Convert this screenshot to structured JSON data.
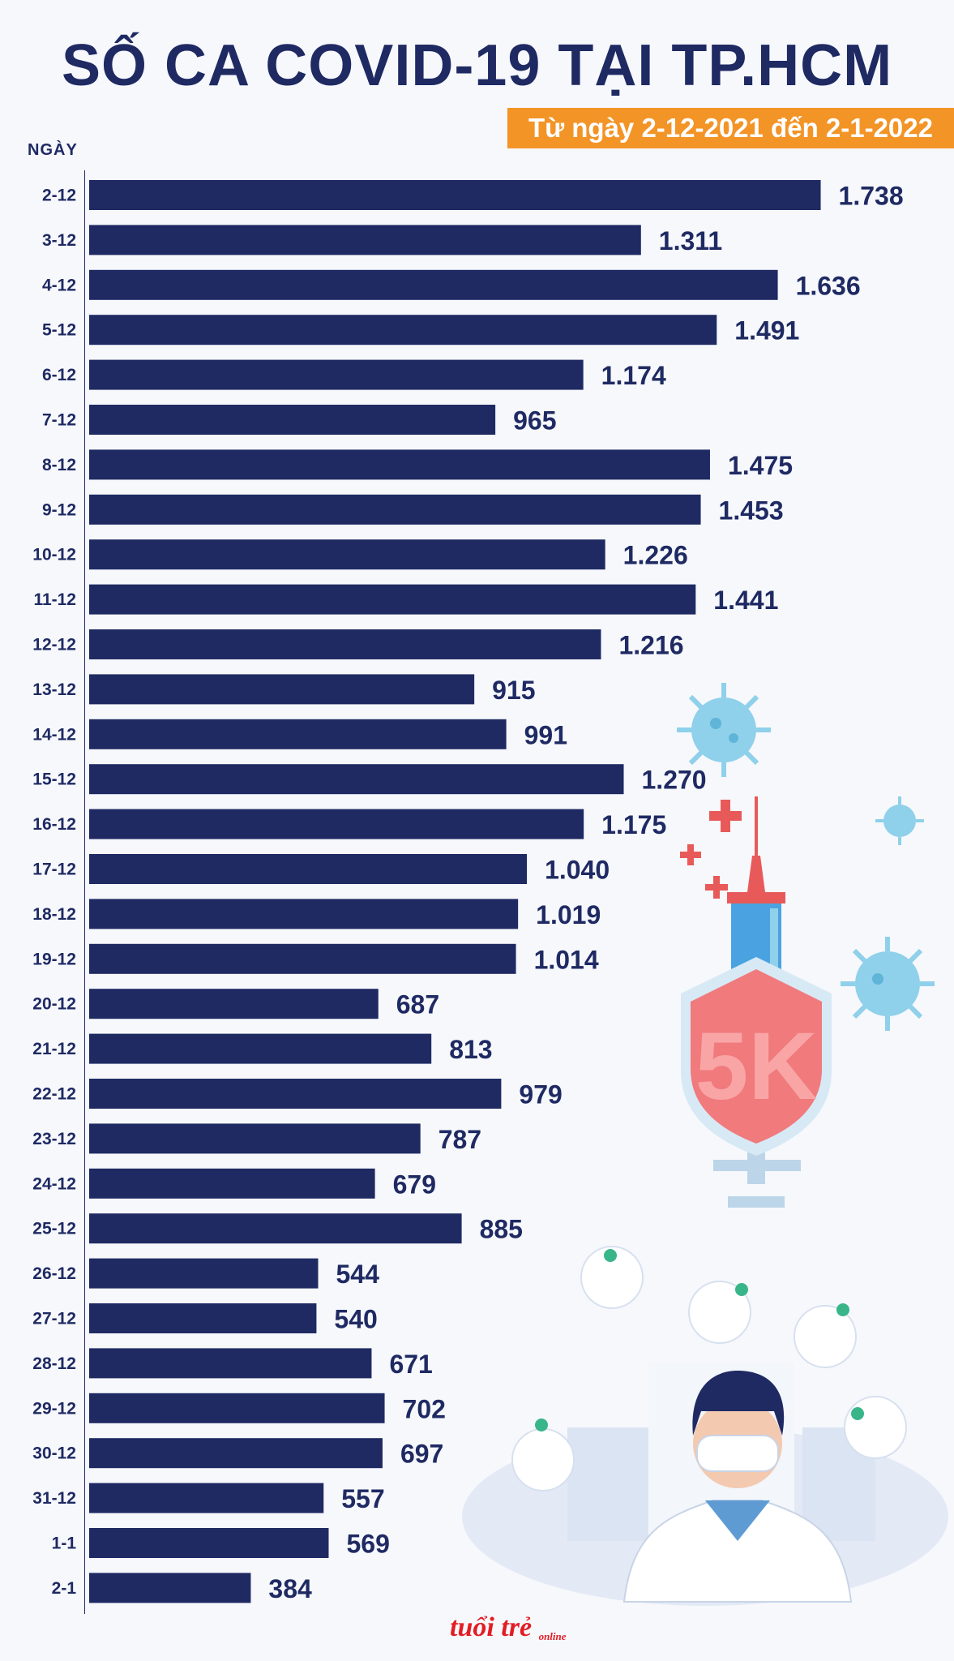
{
  "title": "SỐ CA COVID-19 TẠI TP.HCM",
  "subtitle": "Từ ngày 2-12-2021 đến 2-1-2022",
  "logo": {
    "main": "tuổi trẻ",
    "sub": "online"
  },
  "illustration": {
    "shield_text": "5K"
  },
  "colors": {
    "bar": "#1f2a63",
    "accent": "#f39427",
    "text": "#1f2a63"
  },
  "chart_data": {
    "type": "bar",
    "orientation": "horizontal",
    "title": "SỐ CA COVID-19 TẠI TP.HCM",
    "subtitle": "Từ ngày 2-12-2021 đến 2-1-2022",
    "ylabel": "NGÀY",
    "xlabel": "",
    "xlim": [
      0,
      2000
    ],
    "categories": [
      "2-12",
      "3-12",
      "4-12",
      "5-12",
      "6-12",
      "7-12",
      "8-12",
      "9-12",
      "10-12",
      "11-12",
      "12-12",
      "13-12",
      "14-12",
      "15-12",
      "16-12",
      "17-12",
      "18-12",
      "19-12",
      "20-12",
      "21-12",
      "22-12",
      "23-12",
      "24-12",
      "25-12",
      "26-12",
      "27-12",
      "28-12",
      "29-12",
      "30-12",
      "31-12",
      "1-1",
      "2-1"
    ],
    "values": [
      1738,
      1311,
      1636,
      1491,
      1174,
      965,
      1475,
      1453,
      1226,
      1441,
      1216,
      915,
      991,
      1270,
      1175,
      1040,
      1019,
      1014,
      687,
      813,
      979,
      787,
      679,
      885,
      544,
      540,
      671,
      702,
      697,
      557,
      569,
      384
    ],
    "value_labels": [
      "1.738",
      "1.311",
      "1.636",
      "1.491",
      "1.174",
      "965",
      "1.475",
      "1.453",
      "1.226",
      "1.441",
      "1.216",
      "915",
      "991",
      "1.270",
      "1.175",
      "1.040",
      "1.019",
      "1.014",
      "687",
      "813",
      "979",
      "787",
      "679",
      "885",
      "544",
      "540",
      "671",
      "702",
      "697",
      "557",
      "569",
      "384"
    ]
  }
}
